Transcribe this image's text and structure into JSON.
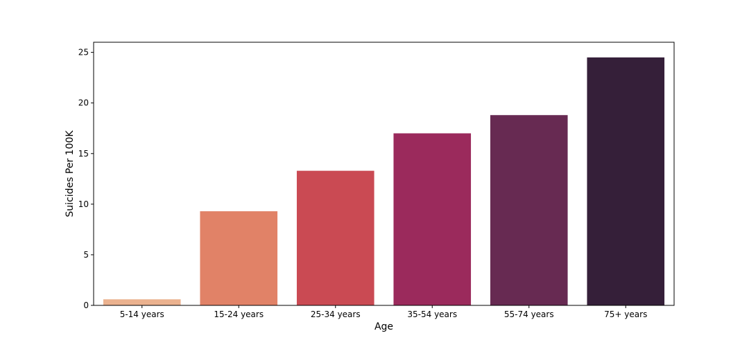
{
  "chart_data": {
    "type": "bar",
    "categories": [
      "5-14 years",
      "15-24 years",
      "25-34 years",
      "35-54 years",
      "55-74 years",
      "75+ years"
    ],
    "values": [
      0.6,
      9.3,
      13.3,
      17.0,
      18.8,
      24.5
    ],
    "colors": [
      "#ebb28f",
      "#e18267",
      "#ca4a53",
      "#9b2a5c",
      "#672a52",
      "#351f39"
    ],
    "xlabel": "Age",
    "ylabel": "Suicides Per 100K",
    "ylim": [
      0,
      26
    ],
    "yticks": [
      0,
      5,
      10,
      15,
      20,
      25
    ],
    "grid": false,
    "legend": "none"
  }
}
